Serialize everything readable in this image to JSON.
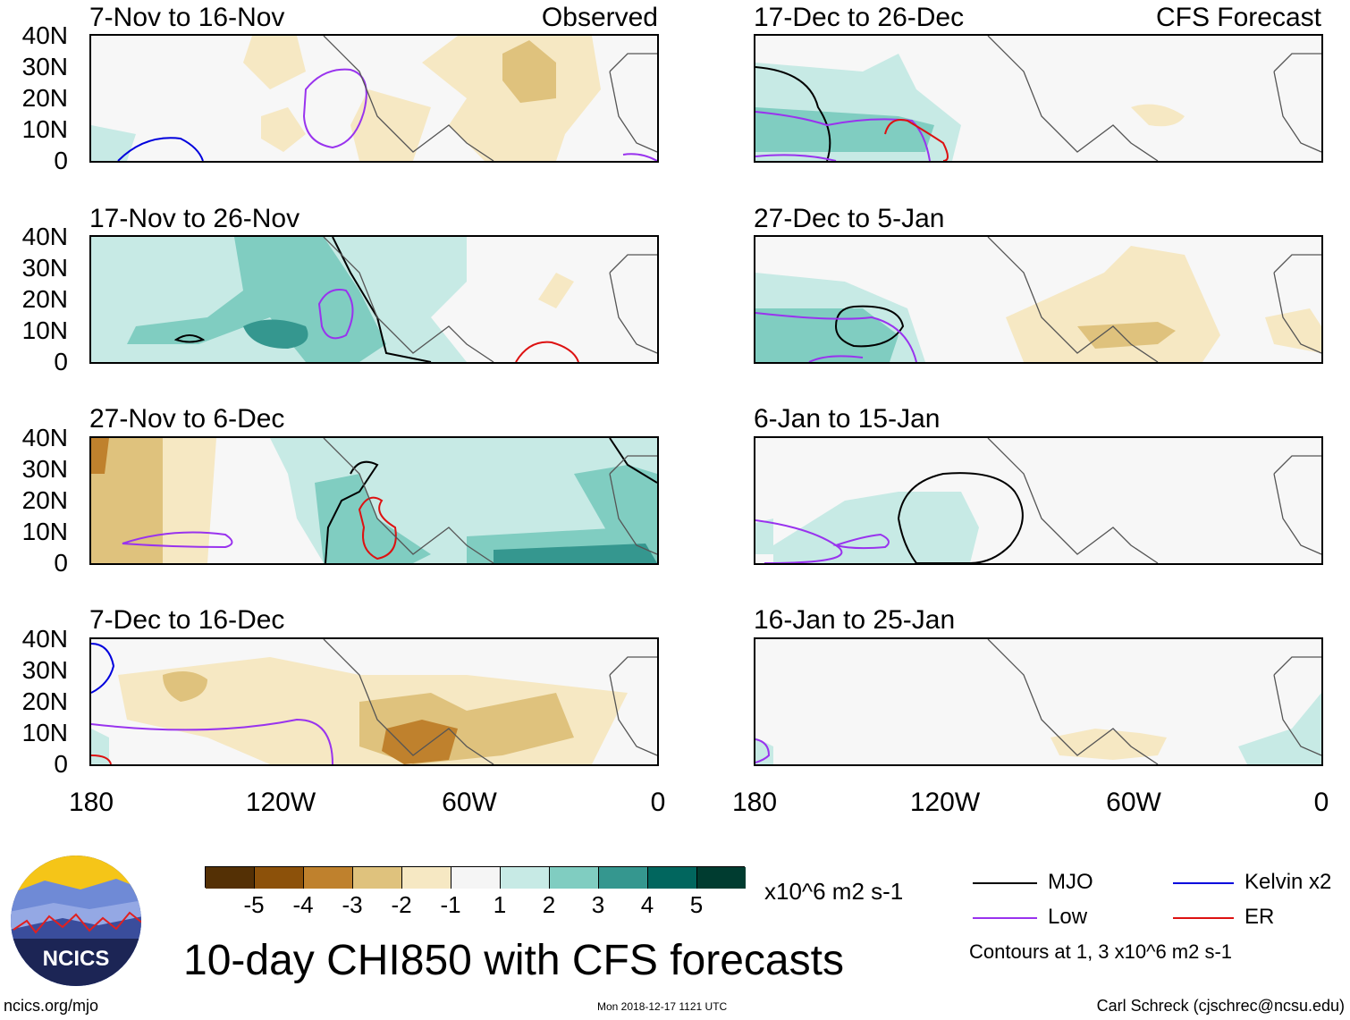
{
  "left_header": {
    "observed_label": "Observed"
  },
  "right_header": {
    "forecast_label": "CFS Forecast"
  },
  "panels_left": [
    {
      "title": "7-Nov to 16-Nov"
    },
    {
      "title": "17-Nov to 26-Nov"
    },
    {
      "title": "27-Nov to 6-Dec"
    },
    {
      "title": "7-Dec to 16-Dec"
    }
  ],
  "panels_right": [
    {
      "title": "17-Dec to 26-Dec"
    },
    {
      "title": "27-Dec to 5-Jan"
    },
    {
      "title": "6-Jan to 15-Jan"
    },
    {
      "title": "16-Jan to 25-Jan"
    }
  ],
  "axes": {
    "y_ticks": [
      "40N",
      "30N",
      "20N",
      "10N",
      "0"
    ],
    "x_ticks": [
      "180",
      "120W",
      "60W",
      "0"
    ]
  },
  "colorbar": {
    "tick_labels": [
      "-5",
      "-4",
      "-3",
      "-2",
      "-1",
      "1",
      "2",
      "3",
      "4",
      "5"
    ],
    "units": "x10^6 m2 s-1",
    "colors": [
      "#543005",
      "#8c510a",
      "#bf812d",
      "#dfc27d",
      "#f6e8c3",
      "#f5f5f5",
      "#c7eae5",
      "#80cdc1",
      "#35978f",
      "#01665e",
      "#003c30"
    ]
  },
  "legend": {
    "mjo": {
      "label": "MJO",
      "color": "#000000"
    },
    "kelvin": {
      "label": "Kelvin x2",
      "color": "#0000dd"
    },
    "low": {
      "label": "Low",
      "color": "#9933ee"
    },
    "er": {
      "label": "ER",
      "color": "#dd1111"
    },
    "contours_note": "Contours at 1, 3 x10^6 m2 s-1"
  },
  "logo": {
    "text": "NCICS"
  },
  "main_title": "10-day CHI850 with CFS forecasts",
  "footer": {
    "url": "ncics.org/mjo",
    "timestamp": "Mon 2018-12-17 1121 UTC",
    "credit": "Carl Schreck (cjschrec@ncsu.edu)"
  }
}
